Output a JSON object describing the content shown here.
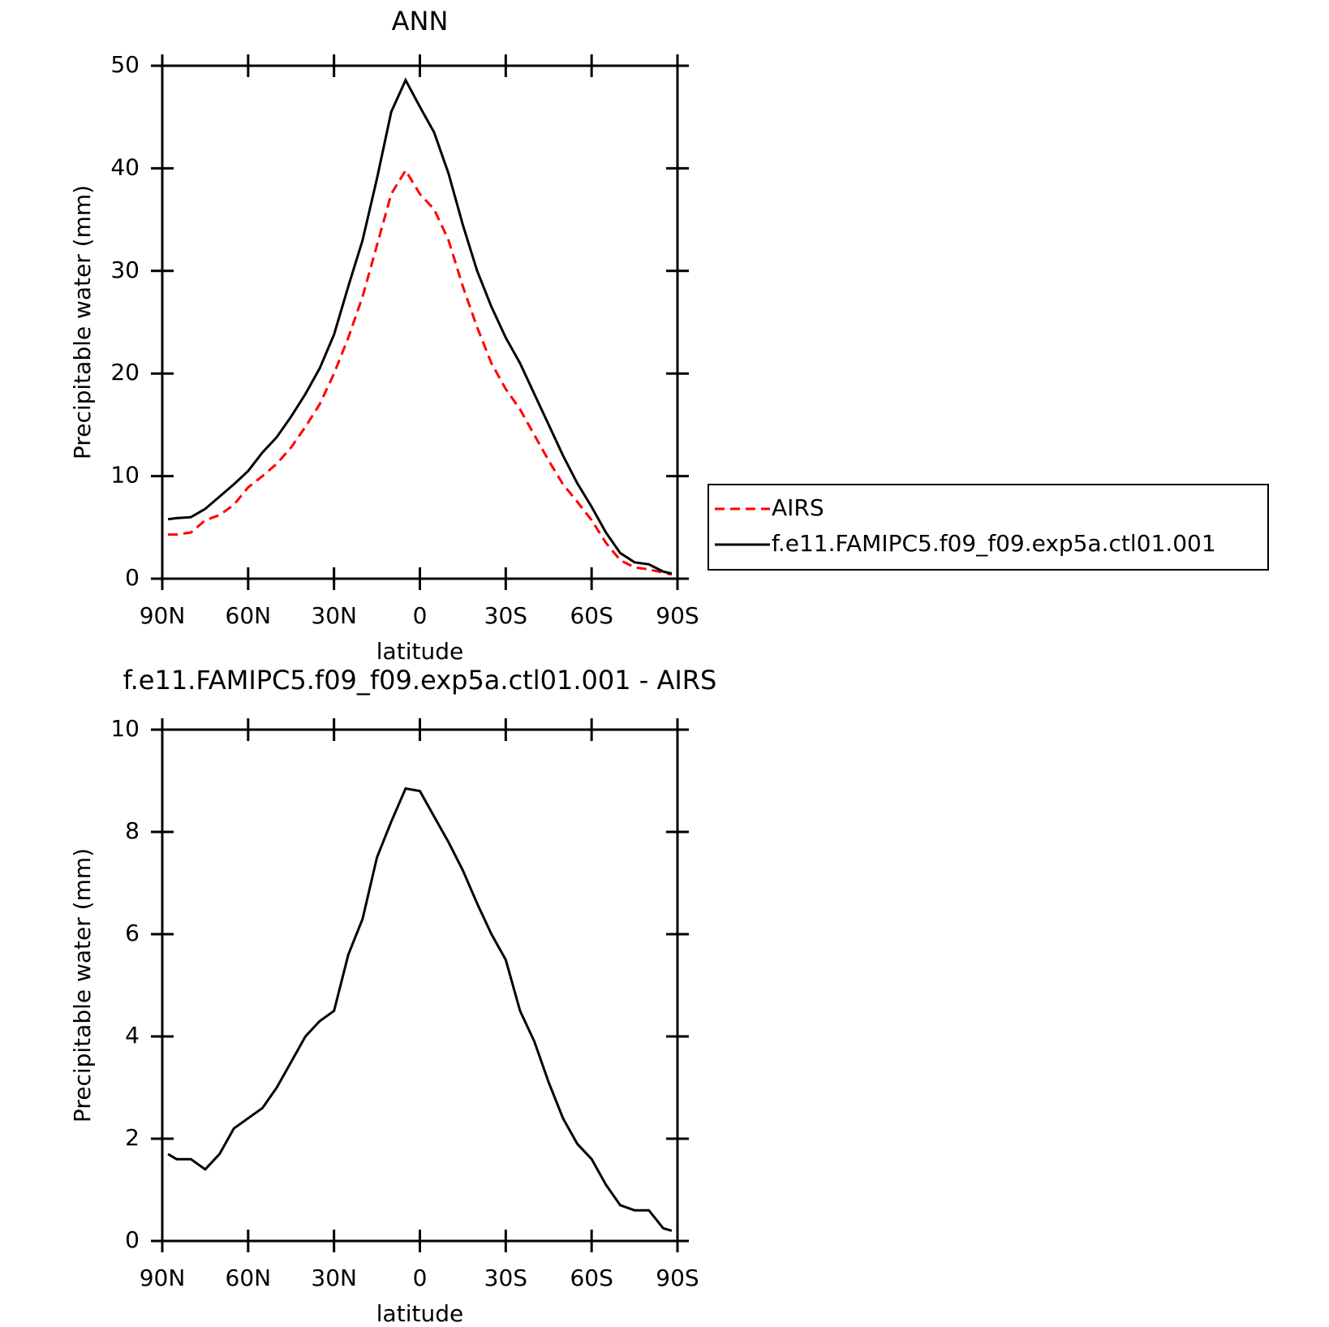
{
  "chart_data": [
    {
      "type": "line",
      "title": "ANN",
      "ylabel": "Precipitable water (mm)",
      "xlabel": "latitude",
      "x": [
        88,
        85,
        80,
        75,
        70,
        65,
        60,
        55,
        50,
        45,
        40,
        35,
        30,
        25,
        20,
        15,
        10,
        5,
        0,
        -5,
        -10,
        -15,
        -20,
        -25,
        -30,
        -35,
        -40,
        -45,
        -50,
        -55,
        -60,
        -65,
        -70,
        -75,
        -80,
        -85,
        -88
      ],
      "series": [
        {
          "name": "AIRS",
          "color": "#ff0000",
          "dashed": true,
          "values": [
            4.3,
            4.3,
            4.5,
            5.7,
            6.2,
            7.2,
            8.9,
            10.0,
            11.2,
            12.8,
            14.8,
            17.0,
            20.0,
            23.5,
            27.5,
            32.5,
            37.5,
            39.8,
            37.5,
            36.0,
            33.0,
            28.5,
            24.5,
            21.0,
            18.5,
            16.5,
            14.0,
            11.5,
            9.2,
            7.5,
            5.7,
            3.5,
            1.8,
            1.1,
            0.9,
            0.6,
            0.4
          ]
        },
        {
          "name": "f.e11.FAMIPC5.f09_f09.exp5a.ctl01.001",
          "color": "#000000",
          "dashed": false,
          "values": [
            5.8,
            5.9,
            6.0,
            6.8,
            8.0,
            9.2,
            10.5,
            12.3,
            13.8,
            15.8,
            18.0,
            20.5,
            23.8,
            28.5,
            33.0,
            39.0,
            45.5,
            48.6,
            46.0,
            43.5,
            39.5,
            34.5,
            30.0,
            26.5,
            23.5,
            21.0,
            18.0,
            15.0,
            12.0,
            9.3,
            7.0,
            4.5,
            2.5,
            1.6,
            1.4,
            0.7,
            0.5
          ]
        }
      ],
      "xlim": [
        90,
        -90
      ],
      "xticks": [
        {
          "value": 90,
          "label": "90N"
        },
        {
          "value": 60,
          "label": "60N"
        },
        {
          "value": 30,
          "label": "30N"
        },
        0,
        {
          "value": -30,
          "label": "30S"
        },
        {
          "value": -60,
          "label": "60S"
        },
        {
          "value": -90,
          "label": "90S"
        }
      ],
      "ylim": [
        0,
        50
      ],
      "yticks": [
        0,
        10,
        20,
        30,
        40,
        50
      ],
      "legend": "right"
    },
    {
      "type": "line",
      "title": "f.e11.FAMIPC5.f09_f09.exp5a.ctl01.001 - AIRS",
      "ylabel": "Precipitable water (mm)",
      "xlabel": "latitude",
      "x": [
        88,
        85,
        80,
        75,
        70,
        65,
        60,
        55,
        50,
        45,
        40,
        35,
        30,
        25,
        20,
        15,
        10,
        5,
        0,
        -5,
        -10,
        -15,
        -20,
        -25,
        -30,
        -35,
        -40,
        -45,
        -50,
        -55,
        -60,
        -65,
        -70,
        -75,
        -80,
        -85,
        -88
      ],
      "values": [
        1.7,
        1.6,
        1.6,
        1.4,
        1.7,
        2.2,
        2.4,
        2.6,
        3.0,
        3.5,
        4.0,
        4.3,
        4.5,
        5.6,
        6.3,
        7.5,
        8.2,
        8.85,
        8.8,
        8.3,
        7.8,
        7.25,
        6.6,
        6.0,
        5.5,
        4.5,
        3.9,
        3.1,
        2.4,
        1.9,
        1.6,
        1.1,
        0.7,
        0.6,
        0.6,
        0.25,
        0.2
      ],
      "color": "#000000",
      "xlim": [
        90,
        -90
      ],
      "xticks": [
        {
          "value": 90,
          "label": "90N"
        },
        {
          "value": 60,
          "label": "60N"
        },
        {
          "value": 30,
          "label": "30N"
        },
        0,
        {
          "value": -30,
          "label": "30S"
        },
        {
          "value": -60,
          "label": "60S"
        },
        {
          "value": -90,
          "label": "90S"
        }
      ],
      "ylim": [
        0,
        10
      ],
      "yticks": [
        0,
        2,
        4,
        6,
        8,
        10
      ]
    }
  ]
}
